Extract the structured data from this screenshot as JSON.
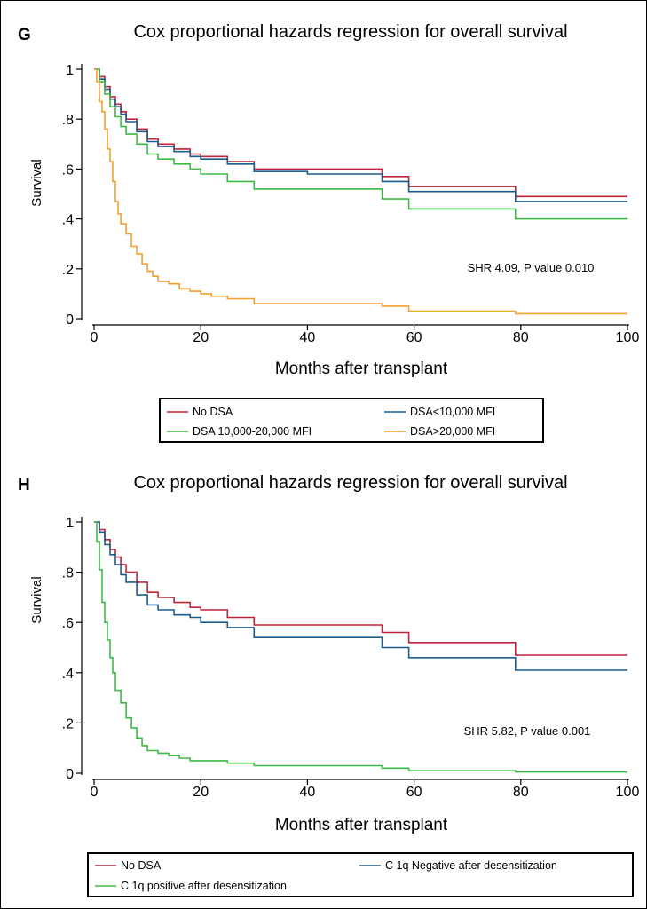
{
  "chart_data": [
    {
      "type": "line",
      "panel_label": "G",
      "title": "Cox proportional hazards regression for overall survival",
      "xlabel": "Months after transplant",
      "ylabel": "Survival",
      "xlim": [
        0,
        100
      ],
      "ylim": [
        0,
        1
      ],
      "x_ticks": [
        "0",
        "20",
        "40",
        "60",
        "80",
        "100"
      ],
      "y_ticks": [
        "0",
        ".2",
        ".4",
        ".6",
        ".8",
        "1"
      ],
      "annotation": "SHR 4.09, P value 0.010",
      "legend_position": "bottom",
      "series": [
        {
          "name": "No DSA",
          "color": "#c0243a",
          "points": [
            [
              0,
              1
            ],
            [
              1,
              0.97
            ],
            [
              2,
              0.93
            ],
            [
              3,
              0.89
            ],
            [
              4,
              0.86
            ],
            [
              5,
              0.83
            ],
            [
              6,
              0.8
            ],
            [
              8,
              0.76
            ],
            [
              10,
              0.72
            ],
            [
              12,
              0.7
            ],
            [
              15,
              0.68
            ],
            [
              18,
              0.66
            ],
            [
              20,
              0.65
            ],
            [
              25,
              0.63
            ],
            [
              30,
              0.6
            ],
            [
              40,
              0.6
            ],
            [
              50,
              0.6
            ],
            [
              53,
              0.6
            ],
            [
              54,
              0.57
            ],
            [
              58,
              0.57
            ],
            [
              59,
              0.53
            ],
            [
              70,
              0.53
            ],
            [
              78,
              0.53
            ],
            [
              79,
              0.49
            ],
            [
              90,
              0.49
            ],
            [
              100,
              0.49
            ]
          ]
        },
        {
          "name": "DSA<10,000 MFI",
          "color": "#1f5a8c",
          "points": [
            [
              0,
              1
            ],
            [
              1,
              0.96
            ],
            [
              2,
              0.92
            ],
            [
              3,
              0.88
            ],
            [
              4,
              0.85
            ],
            [
              5,
              0.82
            ],
            [
              6,
              0.79
            ],
            [
              8,
              0.75
            ],
            [
              10,
              0.71
            ],
            [
              12,
              0.69
            ],
            [
              15,
              0.67
            ],
            [
              18,
              0.65
            ],
            [
              20,
              0.64
            ],
            [
              25,
              0.62
            ],
            [
              30,
              0.59
            ],
            [
              40,
              0.58
            ],
            [
              50,
              0.58
            ],
            [
              53,
              0.58
            ],
            [
              54,
              0.55
            ],
            [
              58,
              0.55
            ],
            [
              59,
              0.51
            ],
            [
              70,
              0.51
            ],
            [
              78,
              0.51
            ],
            [
              79,
              0.47
            ],
            [
              90,
              0.47
            ],
            [
              100,
              0.47
            ]
          ]
        },
        {
          "name": "DSA 10,000-20,000 MFI",
          "color": "#3dbb47",
          "points": [
            [
              0,
              1
            ],
            [
              1,
              0.95
            ],
            [
              2,
              0.9
            ],
            [
              3,
              0.85
            ],
            [
              4,
              0.81
            ],
            [
              5,
              0.77
            ],
            [
              6,
              0.74
            ],
            [
              8,
              0.7
            ],
            [
              10,
              0.66
            ],
            [
              12,
              0.64
            ],
            [
              15,
              0.62
            ],
            [
              18,
              0.6
            ],
            [
              20,
              0.58
            ],
            [
              25,
              0.55
            ],
            [
              30,
              0.52
            ],
            [
              40,
              0.52
            ],
            [
              50,
              0.52
            ],
            [
              53,
              0.52
            ],
            [
              54,
              0.48
            ],
            [
              58,
              0.48
            ],
            [
              59,
              0.44
            ],
            [
              70,
              0.44
            ],
            [
              78,
              0.44
            ],
            [
              79,
              0.4
            ],
            [
              90,
              0.4
            ],
            [
              100,
              0.4
            ]
          ]
        },
        {
          "name": "DSA>20,000 MFI",
          "color": "#f5a02c",
          "points": [
            [
              0,
              1
            ],
            [
              0.5,
              0.95
            ],
            [
              1,
              0.87
            ],
            [
              1.5,
              0.83
            ],
            [
              2,
              0.76
            ],
            [
              2.5,
              0.68
            ],
            [
              3,
              0.63
            ],
            [
              3.5,
              0.55
            ],
            [
              4,
              0.47
            ],
            [
              4.5,
              0.42
            ],
            [
              5,
              0.38
            ],
            [
              6,
              0.34
            ],
            [
              7,
              0.29
            ],
            [
              8,
              0.26
            ],
            [
              9,
              0.22
            ],
            [
              10,
              0.19
            ],
            [
              11,
              0.17
            ],
            [
              12,
              0.15
            ],
            [
              14,
              0.14
            ],
            [
              16,
              0.12
            ],
            [
              18,
              0.11
            ],
            [
              20,
              0.1
            ],
            [
              22,
              0.09
            ],
            [
              25,
              0.08
            ],
            [
              30,
              0.06
            ],
            [
              40,
              0.06
            ],
            [
              50,
              0.06
            ],
            [
              53,
              0.06
            ],
            [
              54,
              0.05
            ],
            [
              58,
              0.05
            ],
            [
              59,
              0.03
            ],
            [
              70,
              0.03
            ],
            [
              78,
              0.03
            ],
            [
              79,
              0.02
            ],
            [
              90,
              0.02
            ],
            [
              100,
              0.02
            ]
          ]
        }
      ]
    },
    {
      "type": "line",
      "panel_label": "H",
      "title": "Cox proportional hazards regression for overall survival",
      "xlabel": "Months after transplant",
      "ylabel": "Survival",
      "xlim": [
        0,
        100
      ],
      "ylim": [
        0,
        1
      ],
      "x_ticks": [
        "0",
        "20",
        "40",
        "60",
        "80",
        "100"
      ],
      "y_ticks": [
        "0",
        ".2",
        ".4",
        ".6",
        ".8",
        "1"
      ],
      "annotation": "SHR 5.82, P value 0.001",
      "legend_position": "bottom",
      "series": [
        {
          "name": "No DSA",
          "color": "#c0243a",
          "points": [
            [
              0,
              1
            ],
            [
              1,
              0.97
            ],
            [
              2,
              0.93
            ],
            [
              3,
              0.89
            ],
            [
              4,
              0.86
            ],
            [
              5,
              0.83
            ],
            [
              6,
              0.8
            ],
            [
              8,
              0.76
            ],
            [
              10,
              0.72
            ],
            [
              12,
              0.7
            ],
            [
              15,
              0.68
            ],
            [
              18,
              0.66
            ],
            [
              20,
              0.65
            ],
            [
              25,
              0.62
            ],
            [
              30,
              0.59
            ],
            [
              40,
              0.59
            ],
            [
              50,
              0.59
            ],
            [
              53,
              0.59
            ],
            [
              54,
              0.56
            ],
            [
              58,
              0.56
            ],
            [
              59,
              0.52
            ],
            [
              70,
              0.52
            ],
            [
              78,
              0.52
            ],
            [
              79,
              0.47
            ],
            [
              90,
              0.47
            ],
            [
              100,
              0.47
            ]
          ]
        },
        {
          "name": "C 1q Negative after desensitization",
          "color": "#1f5a8c",
          "points": [
            [
              0,
              1
            ],
            [
              1,
              0.96
            ],
            [
              2,
              0.91
            ],
            [
              3,
              0.87
            ],
            [
              4,
              0.83
            ],
            [
              5,
              0.79
            ],
            [
              6,
              0.76
            ],
            [
              8,
              0.71
            ],
            [
              10,
              0.67
            ],
            [
              12,
              0.65
            ],
            [
              15,
              0.63
            ],
            [
              18,
              0.62
            ],
            [
              20,
              0.6
            ],
            [
              25,
              0.58
            ],
            [
              30,
              0.54
            ],
            [
              40,
              0.54
            ],
            [
              50,
              0.54
            ],
            [
              53,
              0.54
            ],
            [
              54,
              0.5
            ],
            [
              58,
              0.5
            ],
            [
              59,
              0.46
            ],
            [
              70,
              0.46
            ],
            [
              78,
              0.46
            ],
            [
              79,
              0.41
            ],
            [
              90,
              0.41
            ],
            [
              100,
              0.41
            ]
          ]
        },
        {
          "name": "C 1q positive after desensitization",
          "color": "#3dbb47",
          "points": [
            [
              0,
              1
            ],
            [
              0.5,
              0.92
            ],
            [
              1,
              0.81
            ],
            [
              1.5,
              0.68
            ],
            [
              2,
              0.6
            ],
            [
              2.5,
              0.53
            ],
            [
              3,
              0.46
            ],
            [
              3.5,
              0.4
            ],
            [
              4,
              0.33
            ],
            [
              5,
              0.28
            ],
            [
              6,
              0.22
            ],
            [
              7,
              0.18
            ],
            [
              8,
              0.14
            ],
            [
              9,
              0.11
            ],
            [
              10,
              0.09
            ],
            [
              12,
              0.08
            ],
            [
              14,
              0.07
            ],
            [
              16,
              0.06
            ],
            [
              18,
              0.05
            ],
            [
              20,
              0.05
            ],
            [
              25,
              0.04
            ],
            [
              30,
              0.03
            ],
            [
              40,
              0.03
            ],
            [
              50,
              0.03
            ],
            [
              53,
              0.03
            ],
            [
              54,
              0.02
            ],
            [
              58,
              0.02
            ],
            [
              59,
              0.01
            ],
            [
              70,
              0.01
            ],
            [
              78,
              0.01
            ],
            [
              79,
              0.005
            ],
            [
              90,
              0.005
            ],
            [
              100,
              0.005
            ]
          ]
        }
      ]
    }
  ]
}
